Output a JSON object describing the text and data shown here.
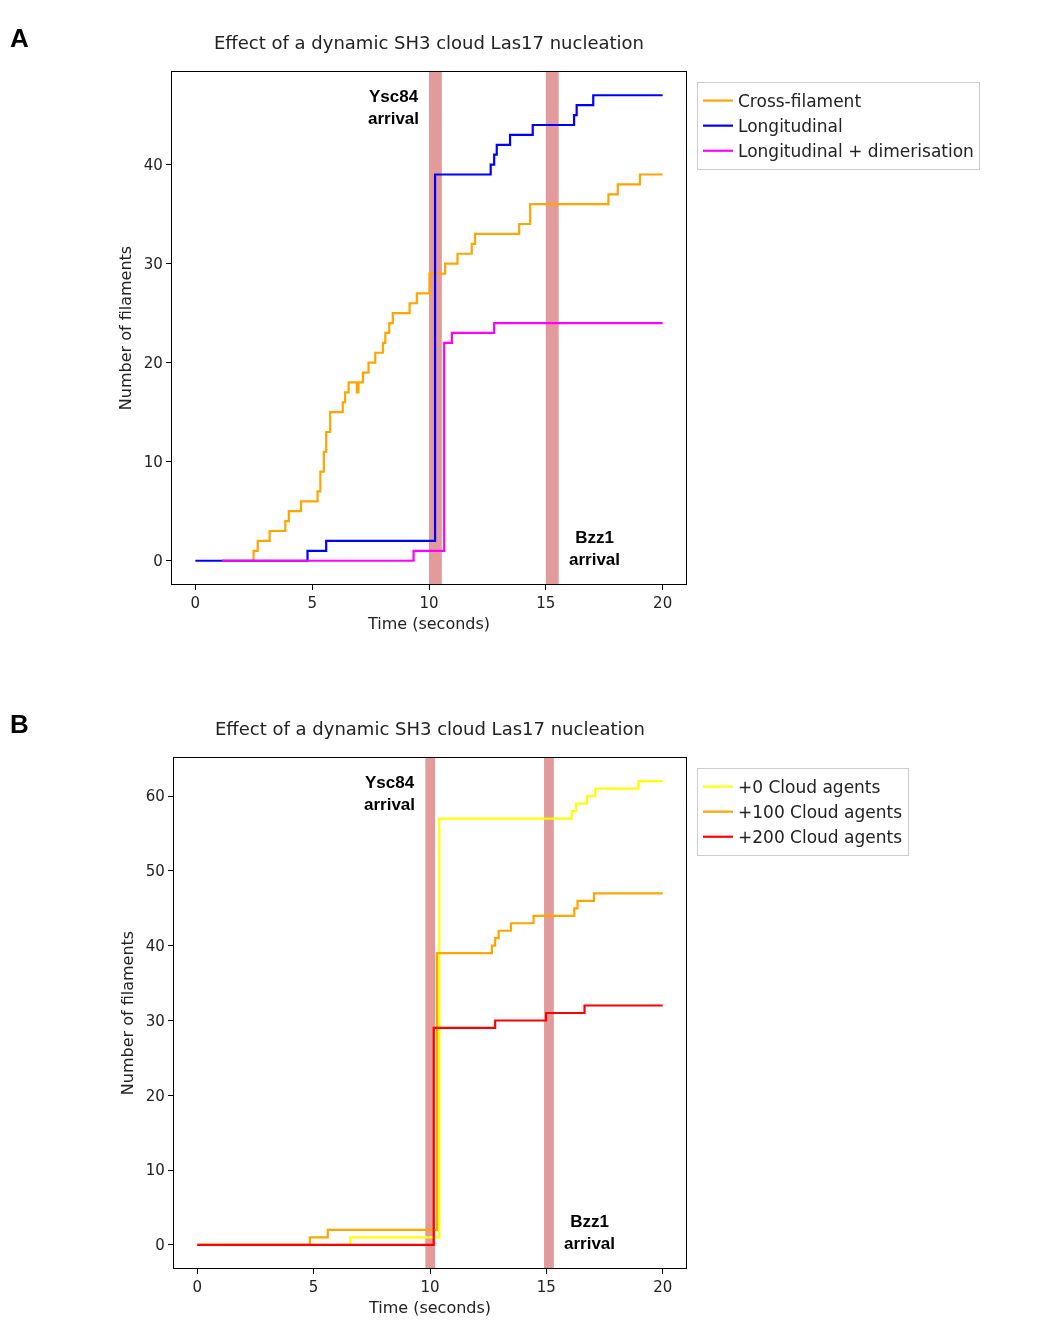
{
  "chart_data": [
    {
      "type": "step",
      "title": "Effect of a dynamic SH3 cloud Las17 nucleation",
      "xlabel": "Time (seconds)",
      "ylabel": "Number of filaments",
      "annotations": [
        "A"
      ],
      "xlim": [
        -1,
        21
      ],
      "ylim": [
        -2.35,
        49.35
      ],
      "xticks": [
        0,
        5,
        10,
        15,
        20
      ],
      "yticks": [
        0,
        10,
        20,
        30,
        40
      ],
      "grid": false,
      "legend": "top right",
      "marker": "none",
      "bands": [
        {
          "axis": "x",
          "from": 10.0,
          "to": 10.55,
          "color": "#e29a9a",
          "label": "Ysc84\narrival"
        },
        {
          "axis": "x",
          "from": 15.0,
          "to": 15.55,
          "color": "#e29a9a",
          "label": "Bzz1\narrival"
        }
      ],
      "series": [
        {
          "name": "Cross-filament",
          "color": "#ffa500",
          "x": [
            1.14,
            2.49,
            2.67,
            3.18,
            3.85,
            4.0,
            4.52,
            5.23,
            5.35,
            5.5,
            5.6,
            5.77,
            6.31,
            6.41,
            6.56,
            6.91,
            6.98,
            7.17,
            7.41,
            7.7,
            8.03,
            8.13,
            8.3,
            8.45,
            9.17,
            9.48,
            10.02,
            10.69,
            11.22,
            11.83,
            11.97,
            13.86,
            14.33,
            17.68,
            18.08,
            19.03,
            20
          ],
          "values": [
            0,
            1,
            2,
            3,
            4,
            5,
            6,
            7,
            9,
            11,
            13,
            15,
            16,
            17,
            18,
            17,
            18,
            19,
            20,
            21,
            22,
            23,
            24,
            25,
            26,
            27,
            29,
            30,
            31,
            32,
            33,
            34,
            36,
            37,
            38,
            39,
            39
          ]
        },
        {
          "name": "Longitudinal",
          "color": "#0000ff",
          "x": [
            0,
            4.8,
            5.6,
            10.02,
            10.26,
            12.64,
            12.79,
            12.9,
            13.47,
            14.44,
            16.21,
            16.32,
            17.03,
            20
          ],
          "values": [
            0,
            1,
            2,
            2,
            39,
            40,
            41,
            42,
            43,
            44,
            45,
            46,
            47,
            47
          ]
        },
        {
          "name": "Longitudinal + dimerisation",
          "color": "#ff00ff",
          "x": [
            1.14,
            9.34,
            10.5,
            10.65,
            10.98,
            12.79,
            20
          ],
          "values": [
            0,
            1,
            1,
            22,
            23,
            24,
            24
          ]
        }
      ]
    },
    {
      "type": "step",
      "title": "Effect of a dynamic SH3 cloud Las17 nucleation",
      "xlabel": "Time (seconds)",
      "ylabel": "Number of filaments",
      "annotations": [
        "B"
      ],
      "xlim": [
        -1,
        21
      ],
      "ylim": [
        -3.1,
        65.1
      ],
      "xticks": [
        0,
        5,
        10,
        15,
        20
      ],
      "yticks": [
        0,
        10,
        20,
        30,
        40,
        50,
        60
      ],
      "grid": false,
      "legend": "top right",
      "marker": "none",
      "bands": [
        {
          "axis": "x",
          "from": 9.8,
          "to": 10.22,
          "color": "#e29a9a",
          "label": "Ysc84\narrival"
        },
        {
          "axis": "x",
          "from": 14.9,
          "to": 15.32,
          "color": "#e29a9a",
          "label": "Bzz1\narrival"
        }
      ],
      "series": [
        {
          "name": "+0 Cloud agents",
          "color": "#ffff00",
          "x": [
            0,
            6.58,
            10.08,
            10.4,
            16.09,
            16.28,
            16.74,
            17.1,
            18.96,
            20
          ],
          "values": [
            0,
            1,
            1,
            57,
            58,
            59,
            60,
            61,
            62,
            62
          ]
        },
        {
          "name": "+100 Cloud agents",
          "color": "#ffa500",
          "x": [
            0,
            4.84,
            5.61,
            10.0,
            10.3,
            12.66,
            12.8,
            12.95,
            13.48,
            14.45,
            16.2,
            16.34,
            17.05,
            20
          ],
          "values": [
            0,
            1,
            2,
            2,
            39,
            40,
            41,
            42,
            43,
            44,
            45,
            46,
            47,
            47
          ]
        },
        {
          "name": "+200 Cloud agents",
          "color": "#ff0000",
          "x": [
            0,
            9.87,
            10.16,
            12.8,
            14.99,
            16.64,
            20
          ],
          "values": [
            0,
            0,
            29,
            30,
            31,
            32,
            32
          ]
        }
      ]
    }
  ]
}
